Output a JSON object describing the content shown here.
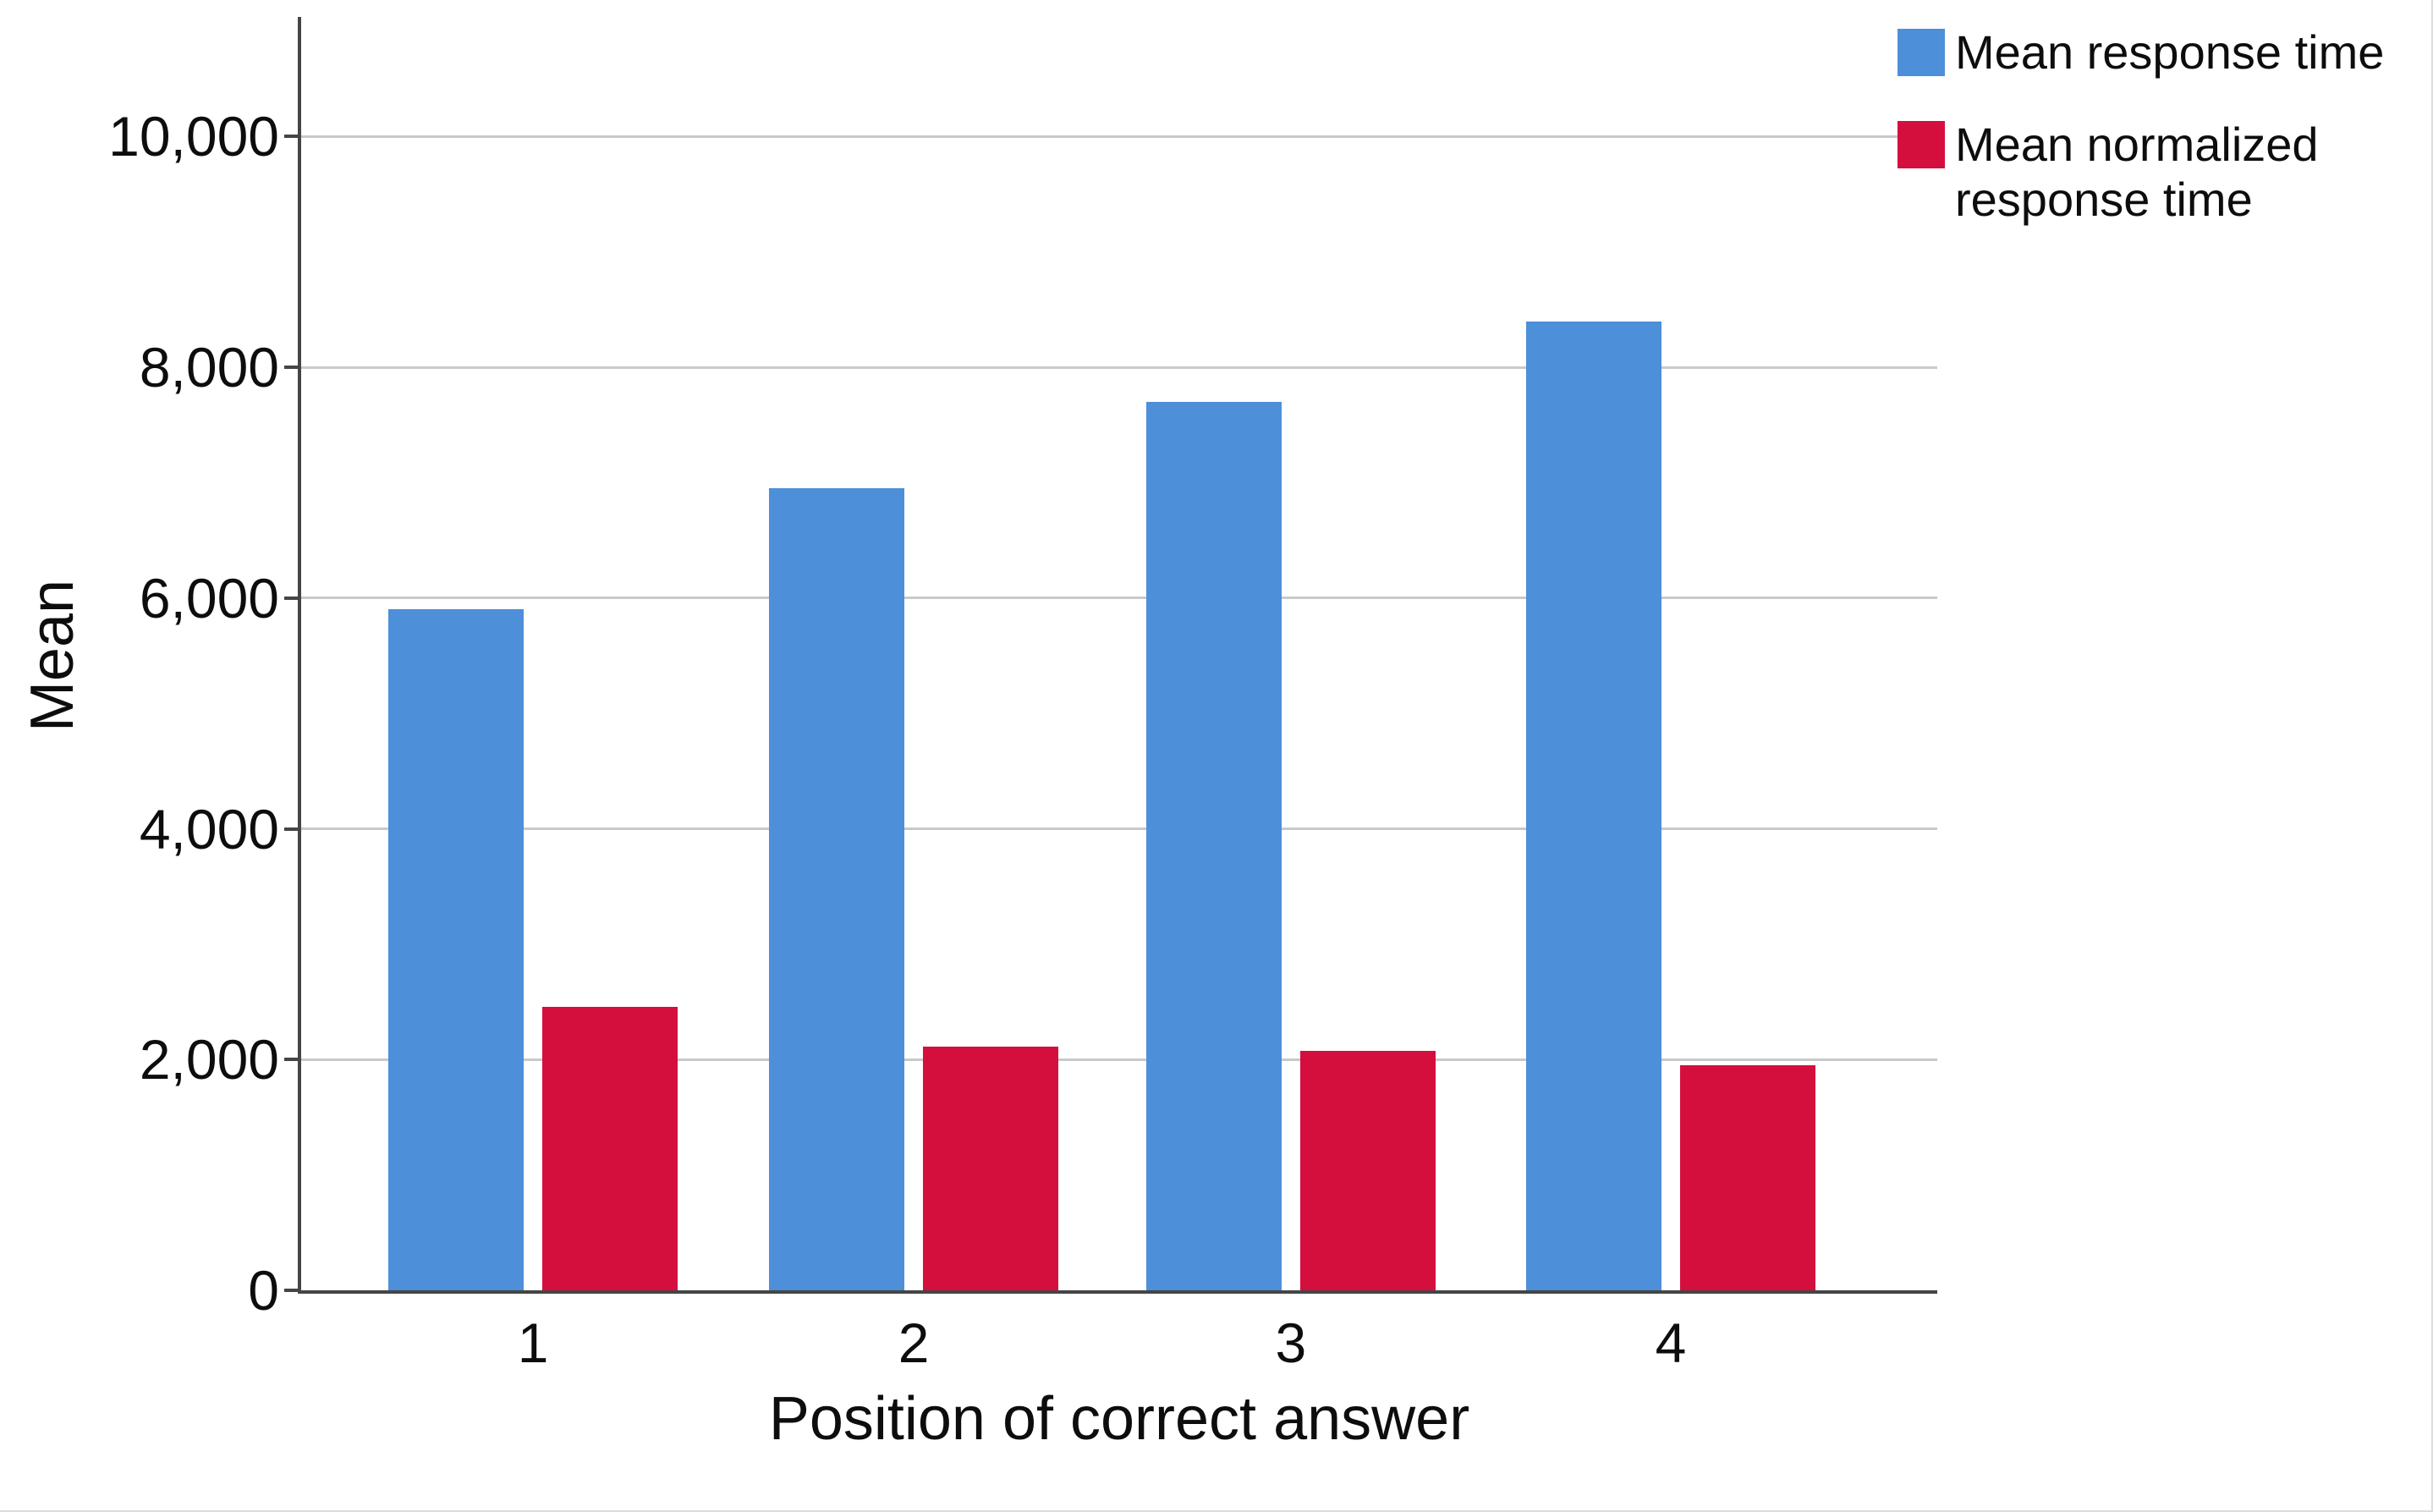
{
  "chart_data": {
    "type": "bar",
    "title": "",
    "categories": [
      "1",
      "2",
      "3",
      "4"
    ],
    "series": [
      {
        "name": "Mean response time",
        "color": "#4d8fd8",
        "values": [
          5900,
          6950,
          7700,
          8400
        ]
      },
      {
        "name": "Mean normalized response time",
        "color": "#d40f3d",
        "values": [
          2460,
          2110,
          2075,
          1950
        ]
      }
    ],
    "xlabel": "Position of correct answer",
    "ylabel": "Mean",
    "ylim": [
      0,
      11000
    ],
    "yticks": [
      0,
      2000,
      4000,
      6000,
      8000,
      10000
    ],
    "ytick_labels": [
      "0",
      "2,000",
      "4,000",
      "6,000",
      "8,000",
      "10,000"
    ],
    "grid": "horizontal",
    "legend_position": "top-right",
    "axis_color": "#454545",
    "gridline_color": "#c9c9c9"
  }
}
